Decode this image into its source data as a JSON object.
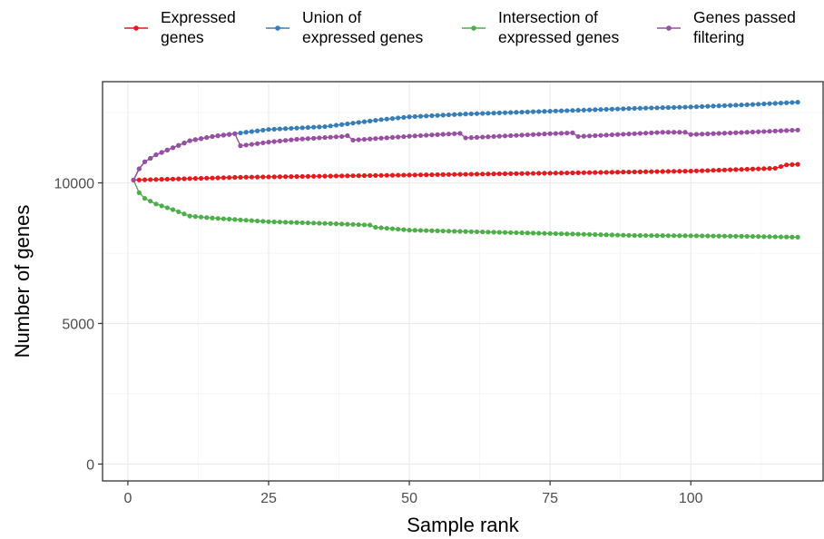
{
  "chart_data": {
    "type": "line",
    "title": "",
    "xlabel": "Sample rank",
    "ylabel": "Number of genes",
    "xlim": [
      -4.5,
      123.5
    ],
    "ylim": [
      -600,
      13600
    ],
    "x_ticks": [
      0,
      25,
      50,
      75,
      100
    ],
    "y_ticks": [
      0,
      5000,
      10000
    ],
    "x_minor_ticks": [
      12.5,
      37.5,
      62.5,
      87.5,
      112.5
    ],
    "y_minor_ticks": [
      2500,
      7500,
      12500
    ],
    "grid": true,
    "legend_position": "top",
    "series": [
      {
        "name": "Expressed\ngenes",
        "color": "#e41a1c",
        "keypoints": [
          [
            1,
            10100
          ],
          [
            20,
            10200
          ],
          [
            50,
            10280
          ],
          [
            80,
            10360
          ],
          [
            100,
            10420
          ],
          [
            112,
            10500
          ],
          [
            115,
            10520
          ],
          [
            117,
            10640
          ],
          [
            119,
            10660
          ]
        ]
      },
      {
        "name": "Union of\nexpressed genes",
        "color": "#377eb8",
        "keypoints": [
          [
            1,
            10100
          ],
          [
            2,
            10500
          ],
          [
            3,
            10750
          ],
          [
            5,
            11000
          ],
          [
            8,
            11250
          ],
          [
            11,
            11500
          ],
          [
            15,
            11650
          ],
          [
            19,
            11750
          ],
          [
            25,
            11900
          ],
          [
            35,
            12000
          ],
          [
            45,
            12250
          ],
          [
            50,
            12350
          ],
          [
            60,
            12450
          ],
          [
            75,
            12550
          ],
          [
            90,
            12650
          ],
          [
            100,
            12700
          ],
          [
            110,
            12780
          ],
          [
            119,
            12870
          ]
        ]
      },
      {
        "name": "Intersection of\nexpressed genes",
        "color": "#4daf4a",
        "keypoints": [
          [
            1,
            10100
          ],
          [
            2,
            9650
          ],
          [
            3,
            9450
          ],
          [
            5,
            9250
          ],
          [
            8,
            9050
          ],
          [
            11,
            8820
          ],
          [
            15,
            8750
          ],
          [
            25,
            8620
          ],
          [
            35,
            8560
          ],
          [
            43,
            8500
          ],
          [
            44,
            8420
          ],
          [
            50,
            8320
          ],
          [
            60,
            8270
          ],
          [
            75,
            8200
          ],
          [
            90,
            8130
          ],
          [
            100,
            8120
          ],
          [
            110,
            8100
          ],
          [
            119,
            8070
          ]
        ]
      },
      {
        "name": "Genes passed\nfiltering",
        "color": "#984ea3",
        "keypoints": [
          [
            1,
            10100
          ],
          [
            2,
            10500
          ],
          [
            3,
            10750
          ],
          [
            5,
            11000
          ],
          [
            8,
            11250
          ],
          [
            11,
            11500
          ],
          [
            15,
            11650
          ],
          [
            19,
            11750
          ],
          [
            20,
            11320
          ],
          [
            25,
            11450
          ],
          [
            30,
            11550
          ],
          [
            38,
            11650
          ],
          [
            39,
            11680
          ],
          [
            40,
            11520
          ],
          [
            50,
            11660
          ],
          [
            58,
            11750
          ],
          [
            59,
            11760
          ],
          [
            60,
            11600
          ],
          [
            75,
            11750
          ],
          [
            79,
            11780
          ],
          [
            80,
            11650
          ],
          [
            95,
            11800
          ],
          [
            99,
            11800
          ],
          [
            100,
            11720
          ],
          [
            110,
            11800
          ],
          [
            119,
            11880
          ]
        ]
      }
    ]
  }
}
